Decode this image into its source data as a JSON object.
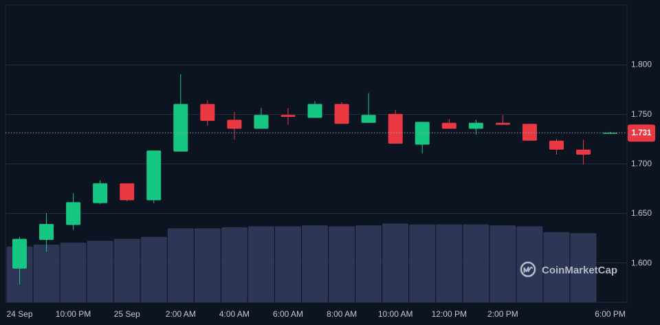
{
  "chart_data": {
    "type": "candlestick",
    "price_axis": {
      "ticks": [
        1.6,
        1.65,
        1.7,
        1.75,
        1.8
      ],
      "tick_labels": [
        "1.600",
        "1.650",
        "1.700",
        "1.750",
        "1.800"
      ],
      "range": [
        1.56,
        1.86
      ]
    },
    "time_axis": {
      "tick_labels": [
        "24 Sep",
        "10:00 PM",
        "25 Sep",
        "2:00 AM",
        "4:00 AM",
        "6:00 AM",
        "8:00 AM",
        "10:00 AM",
        "12:00 PM",
        "2:00 PM",
        "6:00 PM"
      ],
      "tick_candle_index": [
        0,
        2,
        4,
        6,
        8,
        10,
        12,
        14,
        16,
        18,
        22
      ]
    },
    "current_price": {
      "value": 1.731,
      "label": "1.731",
      "color": "#ea3943"
    },
    "candles": [
      {
        "o": 1.594,
        "h": 1.626,
        "l": 1.578,
        "c": 1.624
      },
      {
        "o": 1.623,
        "h": 1.65,
        "l": 1.611,
        "c": 1.639
      },
      {
        "o": 1.638,
        "h": 1.67,
        "l": 1.633,
        "c": 1.661
      },
      {
        "o": 1.66,
        "h": 1.683,
        "l": 1.659,
        "c": 1.68
      },
      {
        "o": 1.68,
        "h": 1.68,
        "l": 1.662,
        "c": 1.663
      },
      {
        "o": 1.663,
        "h": 1.713,
        "l": 1.66,
        "c": 1.713
      },
      {
        "o": 1.712,
        "h": 1.79,
        "l": 1.712,
        "c": 1.76
      },
      {
        "o": 1.76,
        "h": 1.764,
        "l": 1.738,
        "c": 1.743
      },
      {
        "o": 1.744,
        "h": 1.752,
        "l": 1.724,
        "c": 1.735
      },
      {
        "o": 1.735,
        "h": 1.756,
        "l": 1.735,
        "c": 1.749
      },
      {
        "o": 1.749,
        "h": 1.756,
        "l": 1.739,
        "c": 1.747
      },
      {
        "o": 1.746,
        "h": 1.763,
        "l": 1.746,
        "c": 1.76
      },
      {
        "o": 1.76,
        "h": 1.762,
        "l": 1.74,
        "c": 1.74
      },
      {
        "o": 1.741,
        "h": 1.771,
        "l": 1.741,
        "c": 1.749
      },
      {
        "o": 1.75,
        "h": 1.754,
        "l": 1.72,
        "c": 1.72
      },
      {
        "o": 1.719,
        "h": 1.742,
        "l": 1.71,
        "c": 1.742
      },
      {
        "o": 1.741,
        "h": 1.745,
        "l": 1.735,
        "c": 1.735
      },
      {
        "o": 1.735,
        "h": 1.744,
        "l": 1.729,
        "c": 1.741
      },
      {
        "o": 1.741,
        "h": 1.749,
        "l": 1.739,
        "c": 1.739
      },
      {
        "o": 1.74,
        "h": 1.74,
        "l": 1.723,
        "c": 1.723
      },
      {
        "o": 1.723,
        "h": 1.725,
        "l": 1.709,
        "c": 1.714
      },
      {
        "o": 1.714,
        "h": 1.724,
        "l": 1.699,
        "c": 1.709
      },
      {
        "o": 1.731,
        "h": 1.732,
        "l": 1.73,
        "c": 1.731
      }
    ],
    "volumes": [
      58,
      60,
      62,
      64,
      66,
      68,
      77,
      77,
      78,
      79,
      79,
      80,
      79,
      80,
      82,
      81,
      81,
      81,
      80,
      79,
      73,
      72
    ],
    "volume_max": 100,
    "colors": {
      "up": "#16c784",
      "down": "#ea3943",
      "volume": "#2d3654",
      "grid": "#222a3a",
      "background": "#0d1421",
      "axis_text": "#c4c9d4"
    }
  },
  "brand": {
    "name": "CoinMarketCap",
    "icon": "coinmarketcap-logo-icon"
  }
}
